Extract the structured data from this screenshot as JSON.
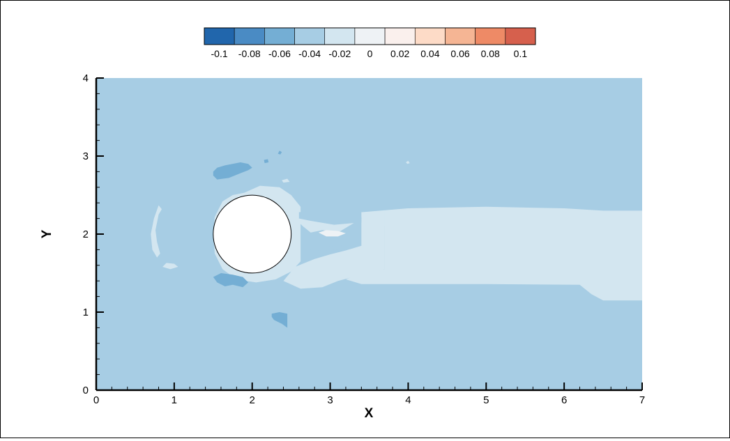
{
  "chart_data": {
    "type": "contour",
    "title": "",
    "xlabel": "X",
    "ylabel": "Y",
    "xlim": [
      0,
      7
    ],
    "ylim": [
      0,
      4
    ],
    "x_ticks": [
      "0",
      "1",
      "2",
      "3",
      "4",
      "5",
      "6",
      "7"
    ],
    "y_ticks": [
      "0",
      "1",
      "2",
      "3",
      "4"
    ],
    "x_tick_values": [
      0,
      1,
      2,
      3,
      4,
      5,
      6,
      7
    ],
    "y_tick_values": [
      0,
      1,
      2,
      3,
      4
    ],
    "x_minor_step": 0.2,
    "y_minor_step": 0.2,
    "grid": false,
    "colorbar": {
      "placement": "top",
      "levels": [
        -0.11,
        -0.09,
        -0.07,
        -0.05,
        -0.03,
        -0.01,
        0.01,
        0.03,
        0.05,
        0.07,
        0.09,
        0.11
      ],
      "colors": [
        "#2166ac",
        "#4a8bc4",
        "#74aed4",
        "#a7cde4",
        "#d3e6f0",
        "#eef2f5",
        "#faf0ed",
        "#fddbc7",
        "#f5b594",
        "#ee8a66",
        "#d6604d",
        "#b2182b"
      ],
      "tick_values": [
        -0.1,
        -0.08,
        -0.06,
        -0.04,
        -0.02,
        0,
        0.02,
        0.04,
        0.06,
        0.08,
        0.1
      ],
      "tick_labels": [
        "-0.1",
        "-0.08",
        "-0.06",
        "-0.04",
        "-0.02",
        "0",
        "0.02",
        "0.04",
        "0.06",
        "0.08",
        "0.1"
      ]
    },
    "background_level": -0.03,
    "cylinder": {
      "center": [
        2,
        2
      ],
      "radius": 0.5
    },
    "regions": [
      {
        "name": "wake",
        "level": -0.01,
        "points": [
          [
            3.4,
            2.28
          ],
          [
            4,
            2.33
          ],
          [
            5,
            2.35
          ],
          [
            6,
            2.33
          ],
          [
            6.5,
            2.3
          ],
          [
            7,
            2.3
          ],
          [
            7,
            1.15
          ],
          [
            6.5,
            1.15
          ],
          [
            6.35,
            1.23
          ],
          [
            6.2,
            1.35
          ],
          [
            5,
            1.36
          ],
          [
            4,
            1.36
          ],
          [
            3.4,
            1.36
          ],
          [
            3.2,
            1.42
          ],
          [
            3.4,
            1.5
          ],
          [
            3.7,
            1.55
          ],
          [
            3.7,
            2.1
          ],
          [
            3.4,
            2.2
          ]
        ]
      },
      {
        "name": "near-wake",
        "level": -0.01,
        "points": [
          [
            2.47,
            2.28
          ],
          [
            2.8,
            2.2
          ],
          [
            3.2,
            2.15
          ],
          [
            3.5,
            2.22
          ],
          [
            3.7,
            2.3
          ],
          [
            3.7,
            1.55
          ],
          [
            3.4,
            1.48
          ],
          [
            3.1,
            1.4
          ],
          [
            2.9,
            1.32
          ],
          [
            2.62,
            1.3
          ],
          [
            2.4,
            1.4
          ],
          [
            2.55,
            1.58
          ],
          [
            2.8,
            1.68
          ],
          [
            3,
            1.74
          ],
          [
            3.2,
            1.79
          ],
          [
            3.4,
            1.85
          ],
          [
            3.4,
            2.2
          ],
          [
            3.1,
            2.02
          ],
          [
            2.9,
            2.05
          ],
          [
            2.75,
            2.02
          ],
          [
            2.65,
            2.1
          ],
          [
            2.55,
            2.2
          ]
        ]
      },
      {
        "name": "cylinder-halo",
        "level": -0.01,
        "points": [
          [
            1.9,
            2.53
          ],
          [
            2.1,
            2.62
          ],
          [
            2.35,
            2.6
          ],
          [
            2.5,
            2.5
          ],
          [
            2.62,
            2.35
          ],
          [
            2.62,
            1.65
          ],
          [
            2.5,
            1.52
          ],
          [
            2.3,
            1.42
          ],
          [
            2.05,
            1.38
          ],
          [
            1.8,
            1.42
          ],
          [
            1.62,
            1.55
          ],
          [
            1.52,
            1.75
          ],
          [
            1.5,
            2
          ],
          [
            1.52,
            2.22
          ],
          [
            1.62,
            2.42
          ],
          [
            1.75,
            2.5
          ]
        ]
      },
      {
        "name": "left-arc",
        "level": -0.01,
        "points": [
          [
            0.8,
            2.37
          ],
          [
            0.74,
            2.2
          ],
          [
            0.7,
            2
          ],
          [
            0.72,
            1.8
          ],
          [
            0.78,
            1.7
          ],
          [
            0.82,
            1.75
          ],
          [
            0.78,
            1.9
          ],
          [
            0.76,
            2.05
          ],
          [
            0.8,
            2.25
          ],
          [
            0.84,
            2.32
          ]
        ]
      },
      {
        "name": "left-arc-tail",
        "level": -0.01,
        "points": [
          [
            0.85,
            1.58
          ],
          [
            0.95,
            1.55
          ],
          [
            1.05,
            1.58
          ],
          [
            1,
            1.62
          ],
          [
            0.9,
            1.63
          ]
        ]
      },
      {
        "name": "upper-blue-blob",
        "level": -0.05,
        "points": [
          [
            1.5,
            2.75
          ],
          [
            1.55,
            2.7
          ],
          [
            1.7,
            2.72
          ],
          [
            1.85,
            2.78
          ],
          [
            1.95,
            2.82
          ],
          [
            2,
            2.85
          ],
          [
            1.95,
            2.9
          ],
          [
            1.85,
            2.92
          ],
          [
            1.65,
            2.88
          ],
          [
            1.55,
            2.85
          ],
          [
            1.5,
            2.8
          ]
        ]
      },
      {
        "name": "lower-blue-blob",
        "level": -0.05,
        "points": [
          [
            1.5,
            1.45
          ],
          [
            1.55,
            1.38
          ],
          [
            1.65,
            1.33
          ],
          [
            1.75,
            1.35
          ],
          [
            1.88,
            1.32
          ],
          [
            1.95,
            1.38
          ],
          [
            1.88,
            1.45
          ],
          [
            1.75,
            1.48
          ],
          [
            1.6,
            1.5
          ]
        ]
      },
      {
        "name": "bottom-blue-blob",
        "level": -0.05,
        "points": [
          [
            2.25,
            0.98
          ],
          [
            2.35,
            1.0
          ],
          [
            2.45,
            0.98
          ],
          [
            2.45,
            0.8
          ],
          [
            2.38,
            0.85
          ],
          [
            2.28,
            0.9
          ],
          [
            2.25,
            0.94
          ]
        ]
      },
      {
        "name": "upper-streak",
        "level": -0.03,
        "points": [
          [
            2.6,
            2.28
          ],
          [
            2.75,
            2.3
          ],
          [
            3.05,
            2.3
          ],
          [
            3.4,
            2.22
          ],
          [
            3.4,
            2.15
          ],
          [
            3.05,
            2.12
          ],
          [
            2.75,
            2.17
          ],
          [
            2.6,
            2.2
          ]
        ]
      },
      {
        "name": "lower-streak",
        "level": -0.03,
        "points": [
          [
            2.65,
            1.84
          ],
          [
            2.9,
            1.84
          ],
          [
            3.15,
            1.85
          ],
          [
            3.1,
            1.8
          ],
          [
            2.85,
            1.79
          ],
          [
            2.65,
            1.8
          ]
        ]
      },
      {
        "name": "positive-patch",
        "level": 0.01,
        "points": [
          [
            2.85,
            2.02
          ],
          [
            2.95,
            2.05
          ],
          [
            3.1,
            2.04
          ],
          [
            3.2,
            2.01
          ],
          [
            3.1,
            1.97
          ],
          [
            2.95,
            1.97
          ]
        ]
      },
      {
        "name": "spot-a",
        "level": -0.05,
        "points": [
          [
            2.33,
            3.03
          ],
          [
            2.35,
            3.07
          ],
          [
            2.38,
            3.05
          ],
          [
            2.36,
            3.02
          ]
        ]
      },
      {
        "name": "spot-b",
        "level": -0.05,
        "points": [
          [
            2.15,
            2.95
          ],
          [
            2.2,
            2.96
          ],
          [
            2.21,
            2.92
          ],
          [
            2.16,
            2.91
          ]
        ]
      },
      {
        "name": "spot-c",
        "level": -0.01,
        "points": [
          [
            2.38,
            2.69
          ],
          [
            2.45,
            2.71
          ],
          [
            2.48,
            2.67
          ],
          [
            2.4,
            2.66
          ]
        ]
      },
      {
        "name": "spot-d",
        "level": -0.01,
        "points": [
          [
            3.97,
            2.92
          ],
          [
            4,
            2.94
          ],
          [
            4.02,
            2.91
          ],
          [
            3.99,
            2.9
          ]
        ]
      }
    ]
  }
}
